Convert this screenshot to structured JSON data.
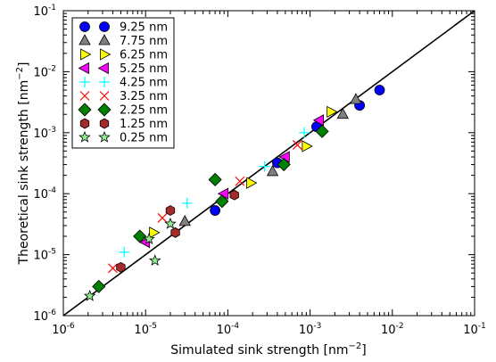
{
  "chart_data": {
    "type": "scatter",
    "title": "",
    "xlabel": "Simulated sink strength [nm",
    "ylabel": "Theoretical sink strength [nm",
    "unit_exponent": "−2",
    "xscale": "log",
    "yscale": "log",
    "xlim": [
      1e-06,
      0.1
    ],
    "ylim": [
      1e-06,
      0.1
    ],
    "x_ticks": [
      {
        "base": "10",
        "exp": "-6",
        "value": 1e-06
      },
      {
        "base": "10",
        "exp": "-5",
        "value": 1e-05
      },
      {
        "base": "10",
        "exp": "-4",
        "value": 0.0001
      },
      {
        "base": "10",
        "exp": "-3",
        "value": 0.001
      },
      {
        "base": "10",
        "exp": "-2",
        "value": 0.01
      },
      {
        "base": "10",
        "exp": "-1",
        "value": 0.1
      }
    ],
    "y_ticks": [
      {
        "base": "10",
        "exp": "-6",
        "value": 1e-06
      },
      {
        "base": "10",
        "exp": "-5",
        "value": 1e-05
      },
      {
        "base": "10",
        "exp": "-4",
        "value": 0.0001
      },
      {
        "base": "10",
        "exp": "-3",
        "value": 0.001
      },
      {
        "base": "10",
        "exp": "-2",
        "value": 0.01
      },
      {
        "base": "10",
        "exp": "-1",
        "value": 0.1
      }
    ],
    "grid": false,
    "legend_position": "top-left",
    "reference_line": {
      "x": [
        1e-06,
        0.1
      ],
      "y": [
        1e-06,
        0.1
      ],
      "color": "#000000"
    },
    "series": [
      {
        "name": "9.25 nm",
        "marker": "circle",
        "color": "#0000ff",
        "points": [
          [
            7e-05,
            5.3e-05
          ],
          [
            0.0004,
            0.00032
          ],
          [
            0.0012,
            0.00125
          ],
          [
            0.004,
            0.0028
          ],
          [
            0.007,
            0.005
          ]
        ]
      },
      {
        "name": "7.75 nm",
        "marker": "triangle-up",
        "color": "#808080",
        "points": [
          [
            3e-05,
            3.5e-05
          ],
          [
            0.00035,
            0.00023
          ],
          [
            0.0025,
            0.002
          ],
          [
            0.0036,
            0.0035
          ]
        ]
      },
      {
        "name": "6.25 nm",
        "marker": "triangle-right",
        "color": "#ffff00",
        "points": [
          [
            1.25e-05,
            2.3e-05
          ],
          [
            0.00019,
            0.00015
          ],
          [
            0.0009,
            0.0006
          ],
          [
            0.0018,
            0.0022
          ]
        ]
      },
      {
        "name": "5.25 nm",
        "marker": "triangle-left",
        "color": "#ff00ff",
        "points": [
          [
            1e-05,
            1.6e-05
          ],
          [
            9e-05,
            0.0001
          ],
          [
            0.0005,
            0.0004
          ],
          [
            0.0013,
            0.0016
          ]
        ]
      },
      {
        "name": "4.25 nm",
        "marker": "plus",
        "color": "#00ffff",
        "points": [
          [
            5.5e-06,
            1.1e-05
          ],
          [
            3.2e-05,
            7e-05
          ],
          [
            0.00028,
            0.00028
          ],
          [
            0.00085,
            0.001
          ]
        ]
      },
      {
        "name": "3.25 nm",
        "marker": "x",
        "color": "#ff0000",
        "points": [
          [
            4e-06,
            6e-06
          ],
          [
            1.6e-05,
            4e-05
          ],
          [
            0.00014,
            0.00016
          ],
          [
            0.0007,
            0.00063
          ]
        ]
      },
      {
        "name": "2.25 nm",
        "marker": "diamond",
        "color": "#008000",
        "points": [
          [
            2.7e-06,
            3e-06
          ],
          [
            8.5e-06,
            2e-05
          ],
          [
            7e-05,
            0.00017
          ],
          [
            8.5e-05,
            7.5e-05
          ],
          [
            0.00048,
            0.0003
          ],
          [
            0.0014,
            0.00105
          ]
        ]
      },
      {
        "name": "1.25 nm",
        "marker": "hexagon",
        "color": "#a52a2a",
        "points": [
          [
            5e-06,
            6.2e-06
          ],
          [
            2.3e-05,
            2.3e-05
          ],
          [
            2e-05,
            5.3e-05
          ],
          [
            0.00012,
            9.5e-05
          ]
        ]
      },
      {
        "name": "0.25 nm",
        "marker": "star",
        "color": "#90ee90",
        "points": [
          [
            2.1e-06,
            2.1e-06
          ],
          [
            1.3e-05,
            8e-06
          ],
          [
            1.1e-05,
            1.8e-05
          ],
          [
            2e-05,
            3.2e-05
          ]
        ]
      }
    ]
  }
}
